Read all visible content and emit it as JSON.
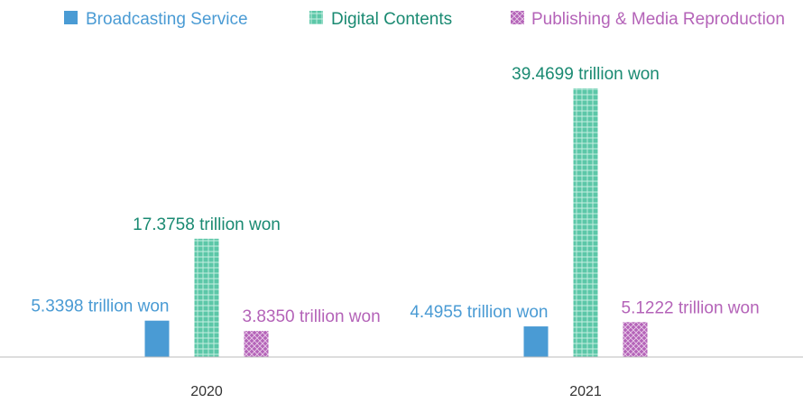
{
  "chart_data": {
    "type": "bar",
    "title": "",
    "xlabel": "",
    "ylabel": "",
    "categories": [
      "2020",
      "2021"
    ],
    "ylim": [
      0,
      40
    ],
    "grid": false,
    "legend_position": "top",
    "series": [
      {
        "name": "Broadcasting Service",
        "values": [
          5.3398,
          4.4955
        ],
        "labels": [
          "5.3398 trillion won",
          "4.4955 trillion won"
        ],
        "color": "#4a9bd4",
        "pattern": "solid"
      },
      {
        "name": "Digital Contents",
        "values": [
          17.3758,
          39.4699
        ],
        "labels": [
          "17.3758 trillion won",
          "39.4699 trillion won"
        ],
        "color": "#5cc7a8",
        "label_color": "#1a8a72",
        "pattern": "grid"
      },
      {
        "name": "Publishing & Media Reproduction",
        "values": [
          3.835,
          5.1222
        ],
        "labels": [
          "3.8350 trillion won",
          "5.1222 trillion won"
        ],
        "color": "#b463b8",
        "pattern": "crosshatch"
      }
    ]
  }
}
